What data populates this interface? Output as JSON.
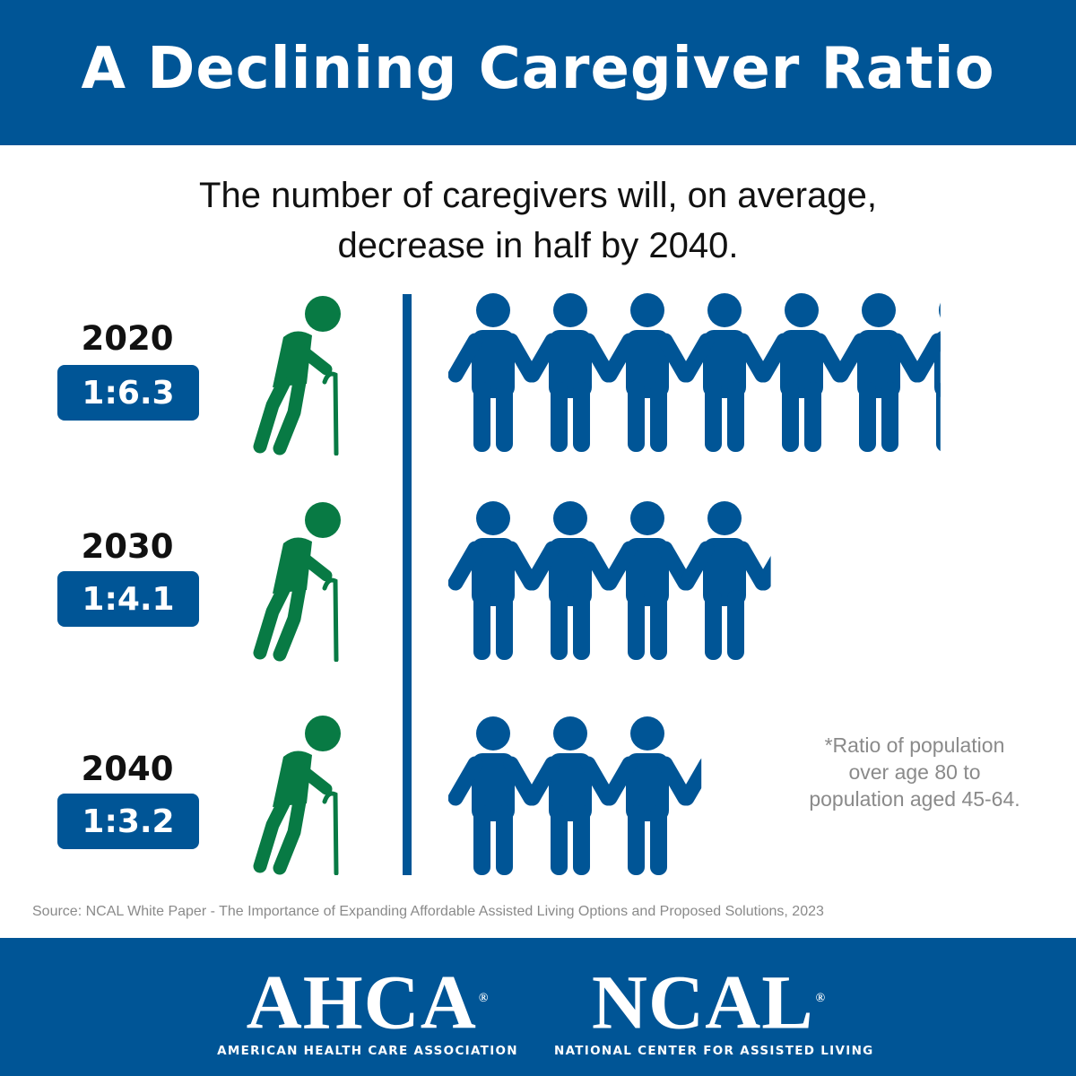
{
  "header": {
    "title": "A Declining Caregiver Ratio"
  },
  "subtitle": {
    "line1": "The number of caregivers will, on average,",
    "line2": "decrease in half by 2040."
  },
  "colors": {
    "primary_blue": "#005596",
    "elder_green": "#087a44",
    "footnote_gray": "#8a8a8a"
  },
  "icons": {
    "elder": "elderly-person-with-cane-icon",
    "caregiver": "person-icon"
  },
  "chart_data": {
    "type": "pictogram",
    "unit": "caregivers per person over age 80",
    "rows": [
      {
        "year": "2020",
        "ratio_label": "1:6.3",
        "value": 6.3
      },
      {
        "year": "2030",
        "ratio_label": "1:4.1",
        "value": 4.1
      },
      {
        "year": "2040",
        "ratio_label": "1:3.2",
        "value": 3.2
      }
    ]
  },
  "footnote": {
    "line1": "*Ratio of population",
    "line2": "over age 80 to",
    "line3": "population aged 45-64."
  },
  "source": "Source: NCAL White Paper - The Importance of Expanding Affordable Assisted Living Options and Proposed Solutions, 2023",
  "footer": {
    "ahca": {
      "name": "AHCA",
      "reg": "®",
      "tagline": "AMERICAN HEALTH CARE ASSOCIATION"
    },
    "ncal": {
      "name": "NCAL",
      "reg": "®",
      "tagline": "NATIONAL CENTER FOR ASSISTED LIVING"
    }
  }
}
